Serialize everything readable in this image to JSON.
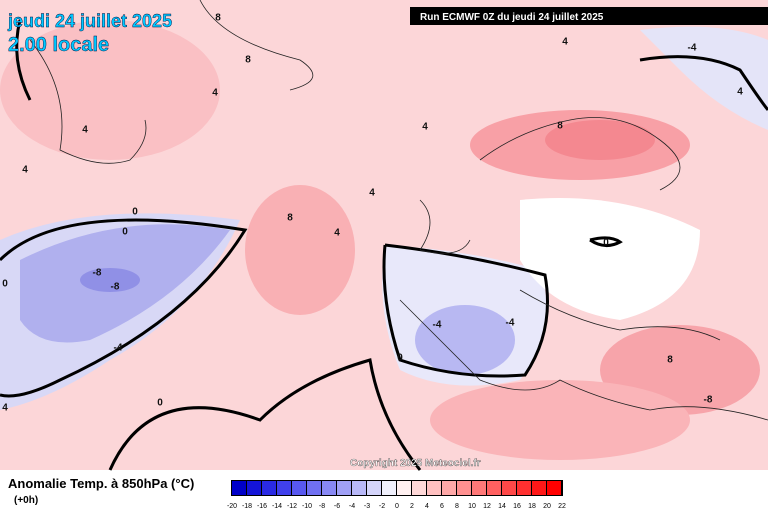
{
  "header": {
    "title": "jeudi 24 juillet 2025",
    "time": "2.00 locale",
    "run": "Run ECMWF 0Z du jeudi 24 juillet 2025"
  },
  "map": {
    "contour_labels": [
      8,
      8,
      4,
      4,
      4,
      4,
      8,
      4,
      0,
      0,
      -8,
      -8,
      -4,
      -4,
      -4,
      0,
      8,
      0,
      8,
      -8,
      4,
      4,
      -4,
      4,
      0,
      4,
      0
    ],
    "copyright": "Copyright 2025 Meteociel.fr"
  },
  "legend": {
    "title": "Anomalie Temp. à 850hPa (°C)",
    "step": "(+0h)",
    "values": [
      -20,
      -18,
      -16,
      -14,
      -12,
      -10,
      -8,
      -6,
      -4,
      -3,
      -2,
      0,
      2,
      4,
      6,
      8,
      10,
      12,
      14,
      16,
      18,
      20,
      22
    ],
    "colors": [
      "#0000c8",
      "#1414d8",
      "#2a2ae4",
      "#4040ec",
      "#5858f0",
      "#7070f2",
      "#8888f4",
      "#a0a0f6",
      "#b8b8f8",
      "#d4d4fa",
      "#f0f0fc",
      "#fff0f0",
      "#ffd8d8",
      "#ffc0c0",
      "#ffa8a8",
      "#ff9090",
      "#ff7878",
      "#ff6060",
      "#ff4848",
      "#ff3030",
      "#ff1818",
      "#ff0000"
    ]
  }
}
